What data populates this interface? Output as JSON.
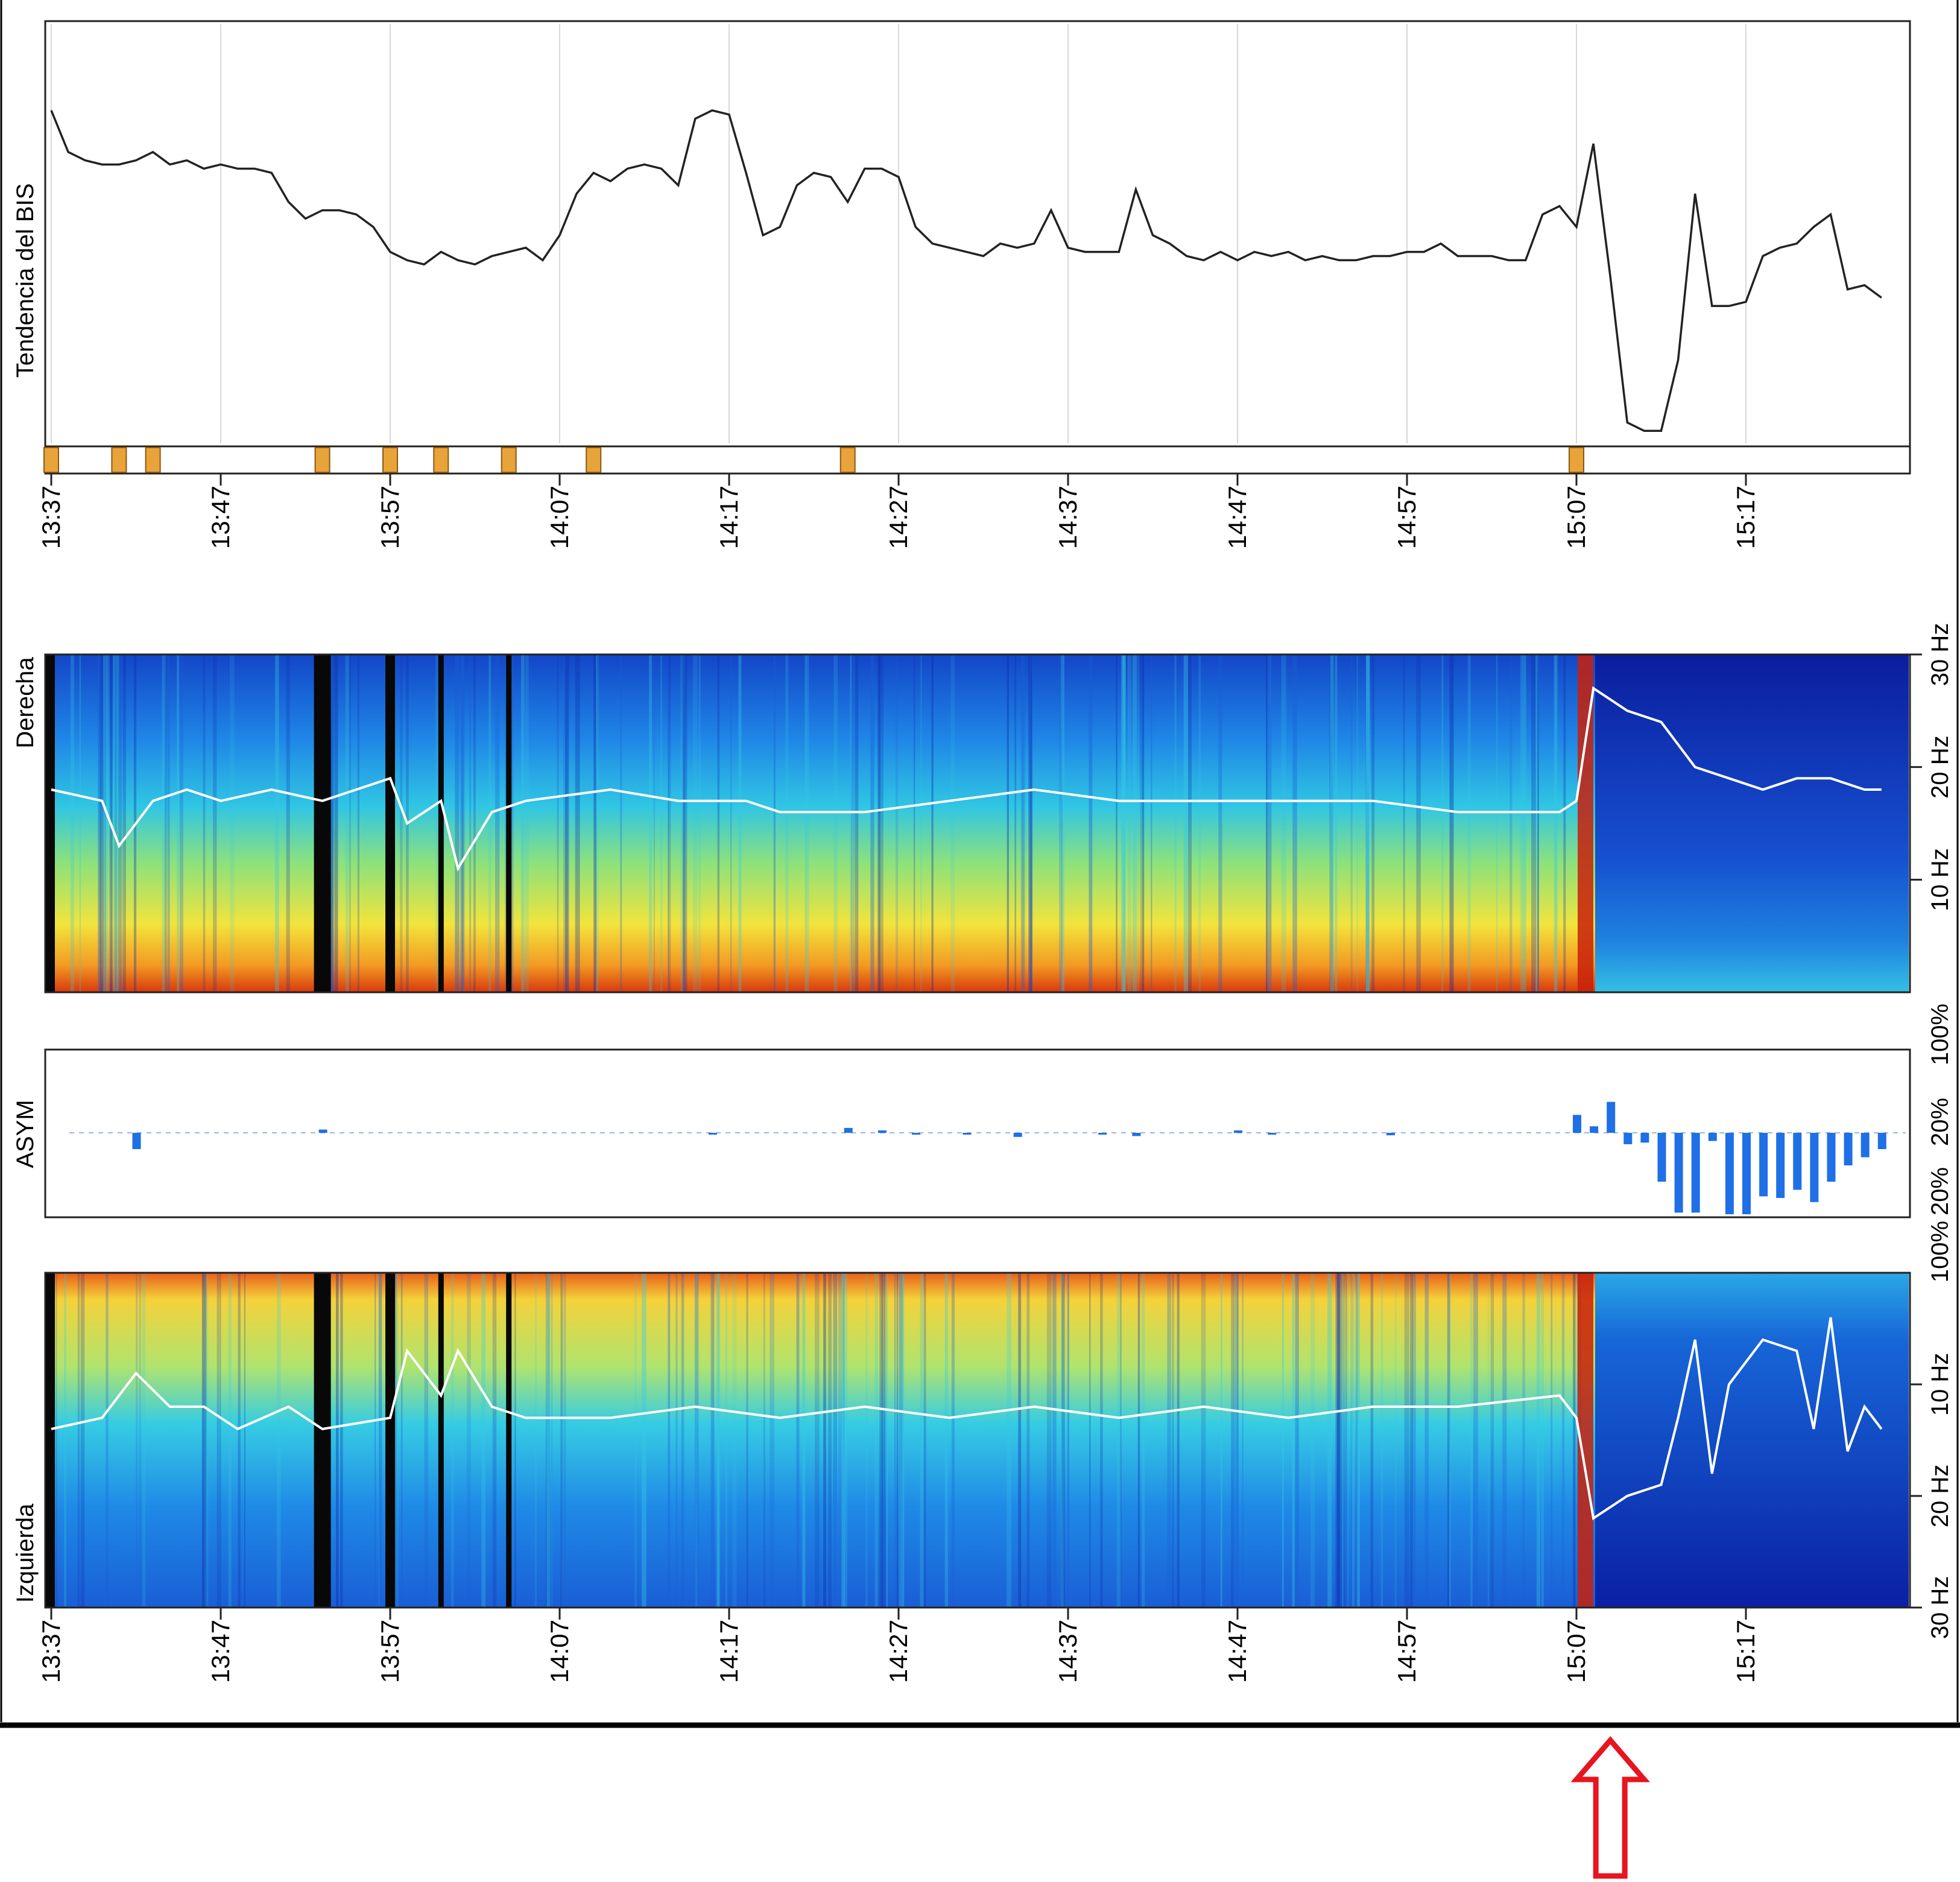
{
  "time_ticks": [
    "13:37",
    "13:47",
    "13:57",
    "14:07",
    "14:17",
    "14:27",
    "14:37",
    "14:47",
    "14:57",
    "15:07",
    "15:17"
  ],
  "chart_data": [
    {
      "type": "line",
      "ylabel": "Tendencia del BIS",
      "x_start": "13:37",
      "x_end": "15:25",
      "ylim": [
        0,
        100
      ],
      "grid": true,
      "series": [
        {
          "color": "#222222",
          "points": [
            [
              "13:37",
              80
            ],
            [
              "13:38",
              70
            ],
            [
              "13:39",
              68
            ],
            [
              "13:40",
              67
            ],
            [
              "13:41",
              67
            ],
            [
              "13:42",
              68
            ],
            [
              "13:43",
              70
            ],
            [
              "13:44",
              67
            ],
            [
              "13:45",
              68
            ],
            [
              "13:46",
              66
            ],
            [
              "13:47",
              67
            ],
            [
              "13:48",
              66
            ],
            [
              "13:49",
              66
            ],
            [
              "13:50",
              65
            ],
            [
              "13:51",
              58
            ],
            [
              "13:52",
              54
            ],
            [
              "13:53",
              56
            ],
            [
              "13:54",
              56
            ],
            [
              "13:55",
              55
            ],
            [
              "13:56",
              52
            ],
            [
              "13:57",
              46
            ],
            [
              "13:58",
              44
            ],
            [
              "13:59",
              43
            ],
            [
              "14:00",
              46
            ],
            [
              "14:01",
              44
            ],
            [
              "14:02",
              43
            ],
            [
              "14:03",
              45
            ],
            [
              "14:04",
              46
            ],
            [
              "14:05",
              47
            ],
            [
              "14:06",
              44
            ],
            [
              "14:07",
              50
            ],
            [
              "14:08",
              60
            ],
            [
              "14:09",
              65
            ],
            [
              "14:10",
              63
            ],
            [
              "14:11",
              66
            ],
            [
              "14:12",
              67
            ],
            [
              "14:13",
              66
            ],
            [
              "14:14",
              62
            ],
            [
              "14:15",
              78
            ],
            [
              "14:16",
              80
            ],
            [
              "14:17",
              79
            ],
            [
              "14:18",
              65
            ],
            [
              "14:19",
              50
            ],
            [
              "14:20",
              52
            ],
            [
              "14:21",
              62
            ],
            [
              "14:22",
              65
            ],
            [
              "14:23",
              64
            ],
            [
              "14:24",
              58
            ],
            [
              "14:25",
              66
            ],
            [
              "14:26",
              66
            ],
            [
              "14:27",
              64
            ],
            [
              "14:28",
              52
            ],
            [
              "14:29",
              48
            ],
            [
              "14:30",
              47
            ],
            [
              "14:31",
              46
            ],
            [
              "14:32",
              45
            ],
            [
              "14:33",
              48
            ],
            [
              "14:34",
              47
            ],
            [
              "14:35",
              48
            ],
            [
              "14:36",
              56
            ],
            [
              "14:37",
              47
            ],
            [
              "14:38",
              46
            ],
            [
              "14:39",
              46
            ],
            [
              "14:40",
              46
            ],
            [
              "14:41",
              61
            ],
            [
              "14:42",
              50
            ],
            [
              "14:43",
              48
            ],
            [
              "14:44",
              45
            ],
            [
              "14:45",
              44
            ],
            [
              "14:46",
              46
            ],
            [
              "14:47",
              44
            ],
            [
              "14:48",
              46
            ],
            [
              "14:49",
              45
            ],
            [
              "14:50",
              46
            ],
            [
              "14:51",
              44
            ],
            [
              "14:52",
              45
            ],
            [
              "14:53",
              44
            ],
            [
              "14:54",
              44
            ],
            [
              "14:55",
              45
            ],
            [
              "14:56",
              45
            ],
            [
              "14:57",
              46
            ],
            [
              "14:58",
              46
            ],
            [
              "14:59",
              48
            ],
            [
              "15:00",
              45
            ],
            [
              "15:01",
              45
            ],
            [
              "15:02",
              45
            ],
            [
              "15:03",
              44
            ],
            [
              "15:04",
              44
            ],
            [
              "15:05",
              55
            ],
            [
              "15:06",
              57
            ],
            [
              "15:07",
              52
            ],
            [
              "15:08",
              72
            ],
            [
              "15:09",
              40
            ],
            [
              "15:10",
              5
            ],
            [
              "15:11",
              3
            ],
            [
              "15:12",
              3
            ],
            [
              "15:13",
              20
            ],
            [
              "15:14",
              60
            ],
            [
              "15:15",
              33
            ],
            [
              "15:16",
              33
            ],
            [
              "15:17",
              34
            ],
            [
              "15:18",
              45
            ],
            [
              "15:19",
              47
            ],
            [
              "15:20",
              48
            ],
            [
              "15:21",
              52
            ],
            [
              "15:22",
              55
            ],
            [
              "15:23",
              37
            ],
            [
              "15:24",
              38
            ],
            [
              "15:25",
              35
            ]
          ]
        }
      ],
      "event_markers": [
        "13:37",
        "13:41",
        "13:43",
        "13:53",
        "13:57",
        "14:00",
        "14:04",
        "14:09",
        "14:24",
        "15:07"
      ],
      "event_marker_color": "#e8a33a"
    },
    {
      "type": "heatmap",
      "ylabel": "Derecha",
      "yticks": [
        "30 Hz",
        "20 Hz",
        "10 Hz"
      ],
      "colormap": [
        "#0a1f9c",
        "#1a6fe0",
        "#28c8e8",
        "#b4e86a",
        "#f4e23a",
        "#f08a1c",
        "#c01e0a"
      ],
      "sef_line_color": "#ffffff",
      "sef_hz": [
        [
          "13:37",
          18
        ],
        [
          "13:40",
          17
        ],
        [
          "13:41",
          13
        ],
        [
          "13:43",
          17
        ],
        [
          "13:45",
          18
        ],
        [
          "13:47",
          17
        ],
        [
          "13:50",
          18
        ],
        [
          "13:53",
          17
        ],
        [
          "13:57",
          19
        ],
        [
          "13:58",
          15
        ],
        [
          "14:00",
          17
        ],
        [
          "14:01",
          11
        ],
        [
          "14:03",
          16
        ],
        [
          "14:05",
          17
        ],
        [
          "14:10",
          18
        ],
        [
          "14:14",
          17
        ],
        [
          "14:18",
          17
        ],
        [
          "14:20",
          16
        ],
        [
          "14:25",
          16
        ],
        [
          "14:30",
          17
        ],
        [
          "14:35",
          18
        ],
        [
          "14:40",
          17
        ],
        [
          "14:45",
          17
        ],
        [
          "14:50",
          17
        ],
        [
          "14:55",
          17
        ],
        [
          "15:00",
          16
        ],
        [
          "15:06",
          16
        ],
        [
          "15:07",
          17
        ],
        [
          "15:08",
          27
        ],
        [
          "15:10",
          25
        ],
        [
          "15:12",
          24
        ],
        [
          "15:14",
          20
        ],
        [
          "15:16",
          19
        ],
        [
          "15:18",
          18
        ],
        [
          "15:20",
          19
        ],
        [
          "15:22",
          19
        ],
        [
          "15:24",
          18
        ],
        [
          "15:25",
          18
        ]
      ],
      "dark_bands": [
        "13:37",
        "13:53",
        "13:57",
        "14:00",
        "14:04"
      ]
    },
    {
      "type": "bar",
      "ylabel": "ASYM",
      "yticks_top": [
        "100%",
        "20%"
      ],
      "yticks_bottom": [
        "20%",
        "100%"
      ],
      "bar_color": "#1f6fe6",
      "series": [
        {
          "points": [
            [
              "13:42",
              -20
            ],
            [
              "13:53",
              4
            ],
            [
              "14:16",
              -2
            ],
            [
              "14:24",
              6
            ],
            [
              "14:26",
              3
            ],
            [
              "14:28",
              -2
            ],
            [
              "14:31",
              -2
            ],
            [
              "14:34",
              -5
            ],
            [
              "14:39",
              -2
            ],
            [
              "14:41",
              -4
            ],
            [
              "14:47",
              3
            ],
            [
              "14:49",
              -2
            ],
            [
              "14:56",
              -3
            ],
            [
              "15:07",
              22
            ],
            [
              "15:08",
              8
            ],
            [
              "15:09",
              38
            ],
            [
              "15:10",
              -14
            ],
            [
              "15:11",
              -12
            ],
            [
              "15:12",
              -60
            ],
            [
              "15:13",
              -98
            ],
            [
              "15:14",
              -98
            ],
            [
              "15:15",
              -10
            ],
            [
              "15:16",
              -100
            ],
            [
              "15:17",
              -100
            ],
            [
              "15:18",
              -78
            ],
            [
              "15:19",
              -80
            ],
            [
              "15:20",
              -70
            ],
            [
              "15:21",
              -85
            ],
            [
              "15:22",
              -60
            ],
            [
              "15:23",
              -40
            ],
            [
              "15:24",
              -30
            ],
            [
              "15:25",
              -20
            ]
          ]
        }
      ]
    },
    {
      "type": "heatmap",
      "ylabel": "Izquierda",
      "yticks": [
        "10 Hz",
        "20 Hz",
        "30 Hz"
      ],
      "colormap": [
        "#0a1f9c",
        "#1a6fe0",
        "#28c8e8",
        "#b4e86a",
        "#f4e23a",
        "#f08a1c",
        "#c01e0a"
      ],
      "sef_line_color": "#ffffff",
      "sef_hz": [
        [
          "13:37",
          14
        ],
        [
          "13:40",
          13
        ],
        [
          "13:42",
          9
        ],
        [
          "13:44",
          12
        ],
        [
          "13:46",
          12
        ],
        [
          "13:48",
          14
        ],
        [
          "13:51",
          12
        ],
        [
          "13:53",
          14
        ],
        [
          "13:57",
          13
        ],
        [
          "13:58",
          7
        ],
        [
          "14:00",
          11
        ],
        [
          "14:01",
          7
        ],
        [
          "14:03",
          12
        ],
        [
          "14:05",
          13
        ],
        [
          "14:10",
          13
        ],
        [
          "14:15",
          12
        ],
        [
          "14:20",
          13
        ],
        [
          "14:25",
          12
        ],
        [
          "14:30",
          13
        ],
        [
          "14:35",
          12
        ],
        [
          "14:40",
          13
        ],
        [
          "14:45",
          12
        ],
        [
          "14:50",
          13
        ],
        [
          "14:55",
          12
        ],
        [
          "15:00",
          12
        ],
        [
          "15:06",
          11
        ],
        [
          "15:07",
          13
        ],
        [
          "15:08",
          22
        ],
        [
          "15:10",
          20
        ],
        [
          "15:12",
          19
        ],
        [
          "15:13",
          13
        ],
        [
          "15:14",
          6
        ],
        [
          "15:15",
          18
        ],
        [
          "15:16",
          10
        ],
        [
          "15:18",
          6
        ],
        [
          "15:20",
          7
        ],
        [
          "15:21",
          14
        ],
        [
          "15:22",
          4
        ],
        [
          "15:23",
          16
        ],
        [
          "15:24",
          12
        ],
        [
          "15:25",
          14
        ]
      ],
      "dark_bands": [
        "13:37",
        "13:53",
        "13:57",
        "14:00",
        "14:04"
      ]
    }
  ],
  "annotation": {
    "type": "arrow",
    "color": "#e8141e",
    "at_time": "15:09"
  }
}
